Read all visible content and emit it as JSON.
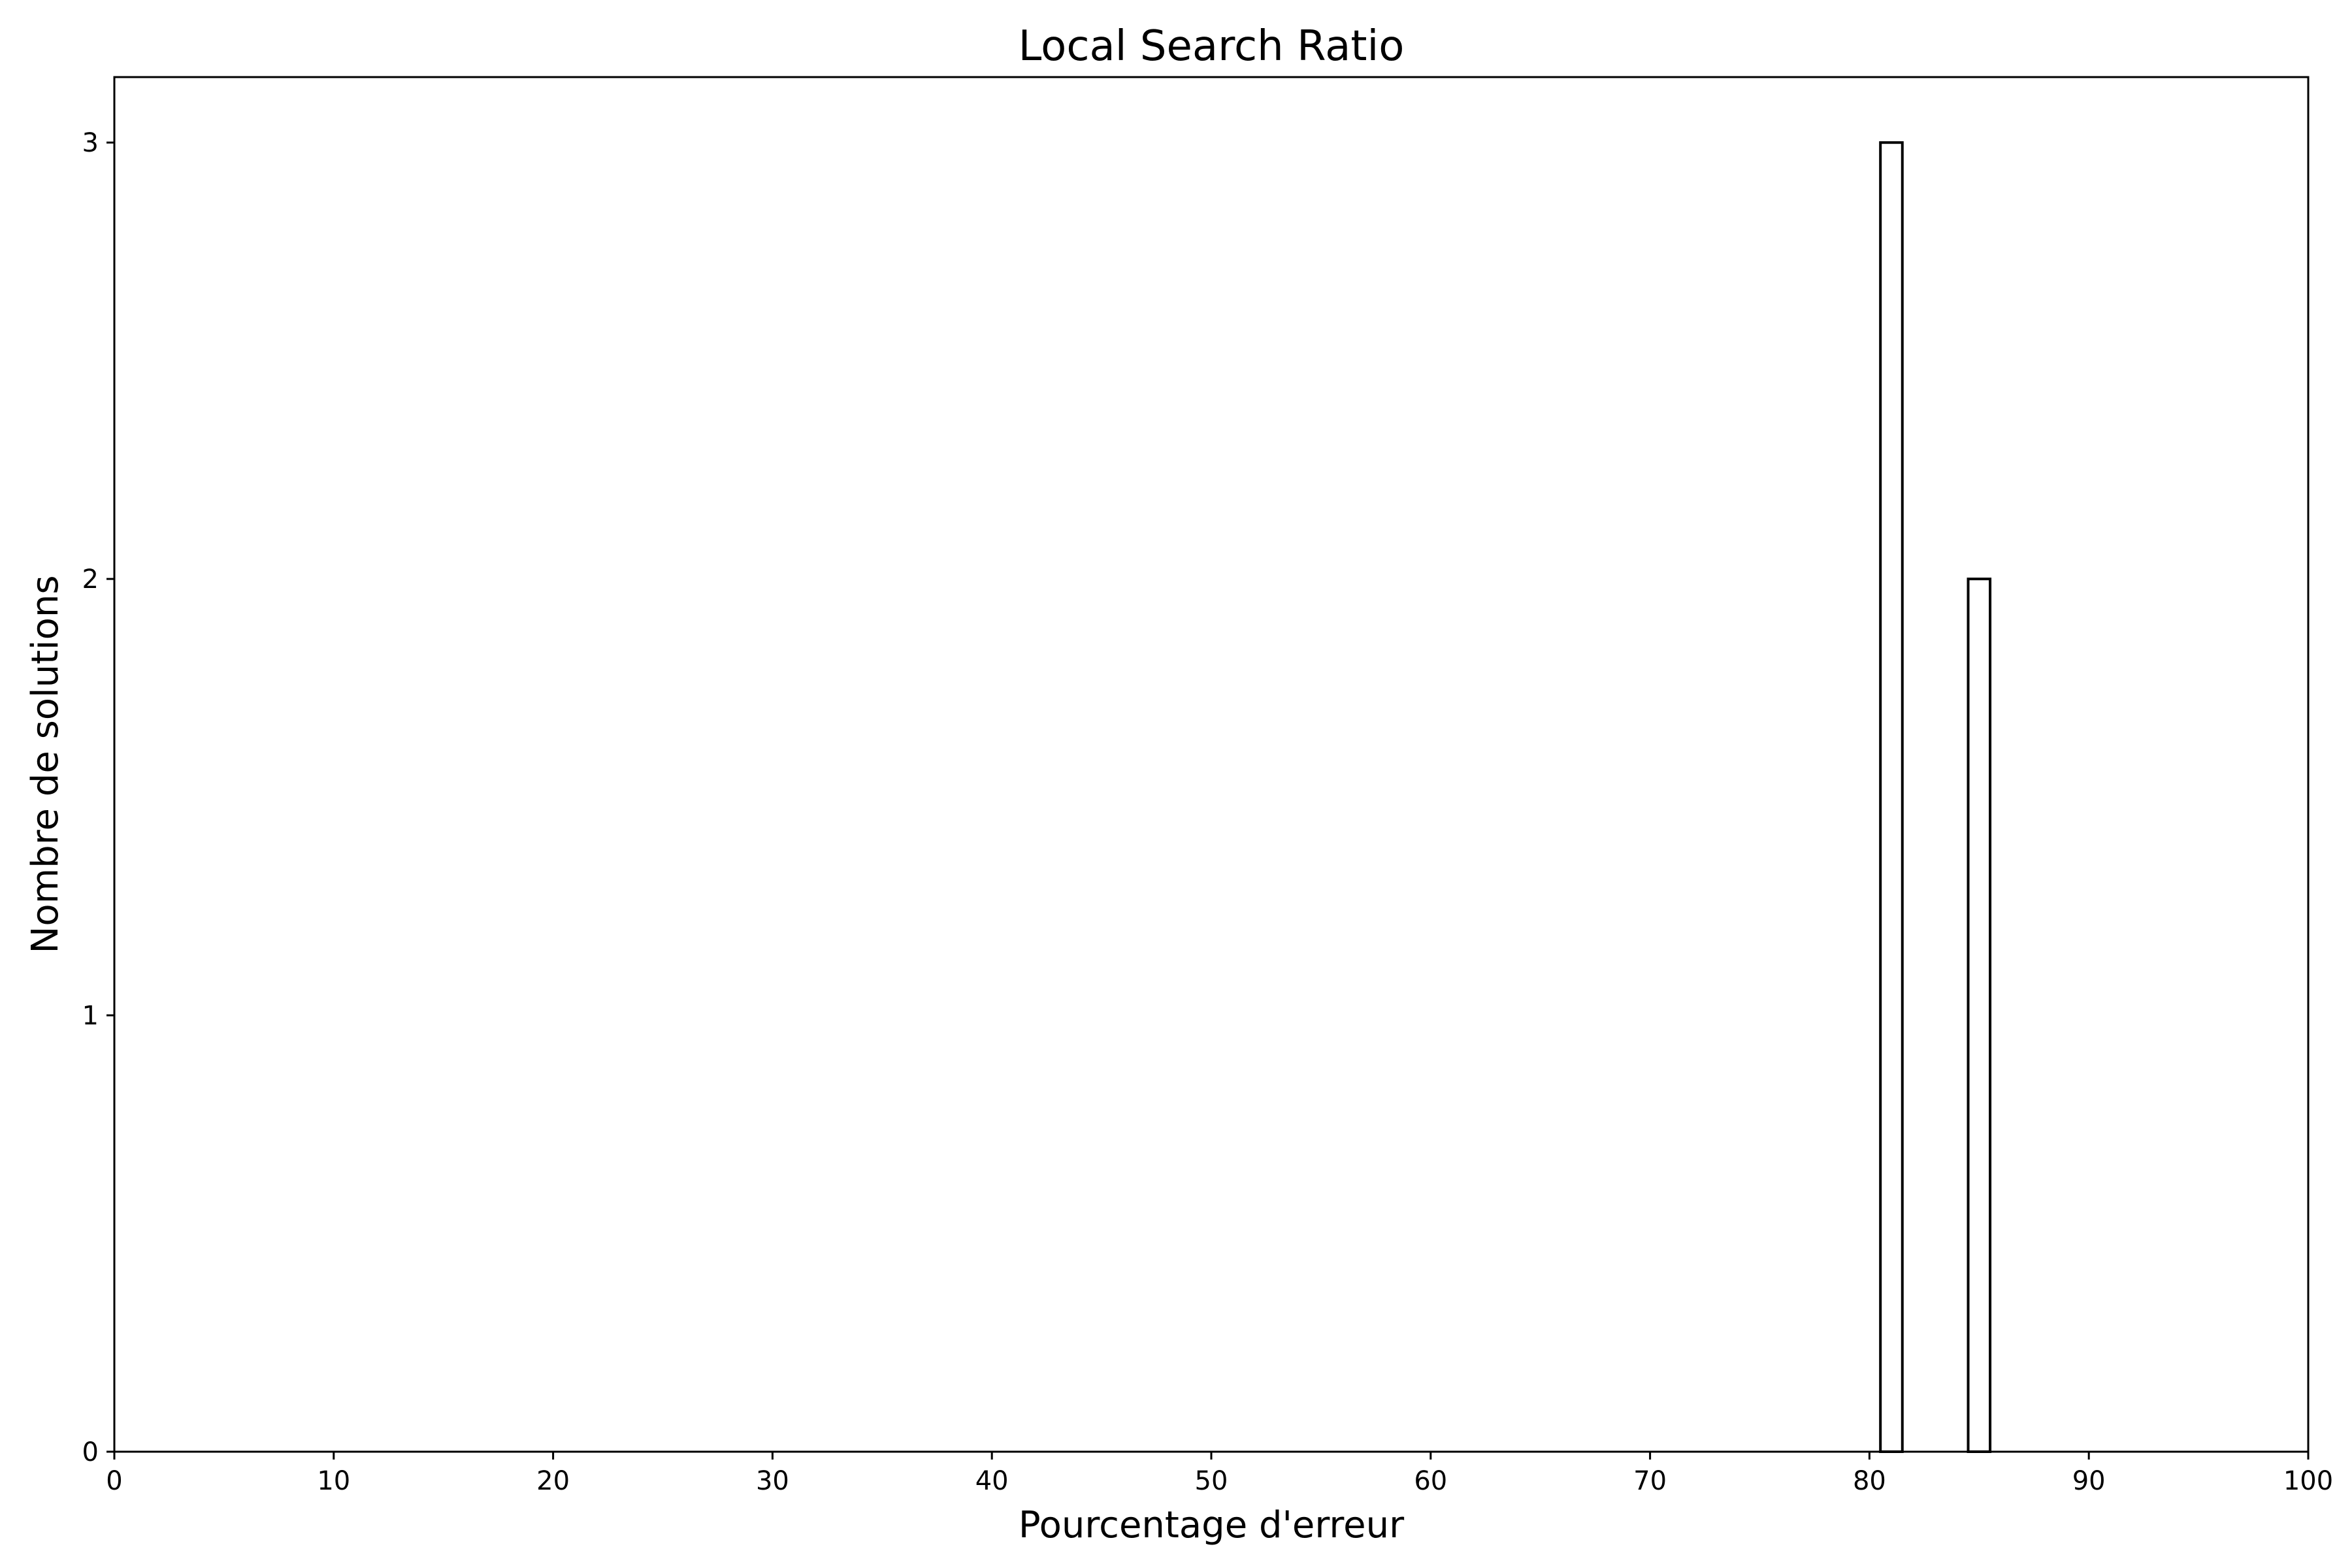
{
  "chart_data": {
    "type": "bar",
    "title": "Local Search Ratio",
    "xlabel": "Pourcentage d'erreur",
    "ylabel": "Nombre de solutions",
    "xlim": [
      0,
      100
    ],
    "ylim": [
      0,
      3.15
    ],
    "xticks": [
      0,
      10,
      20,
      30,
      40,
      50,
      60,
      70,
      80,
      90,
      100
    ],
    "yticks": [
      0,
      1,
      2,
      3
    ],
    "grid": false,
    "bars": [
      {
        "x_start": 80.5,
        "x_end": 81.5,
        "value": 3
      },
      {
        "x_start": 84.5,
        "x_end": 85.5,
        "value": 2
      }
    ],
    "colors": {
      "bar_fill": "#ffffff",
      "bar_edge": "#000000"
    }
  }
}
